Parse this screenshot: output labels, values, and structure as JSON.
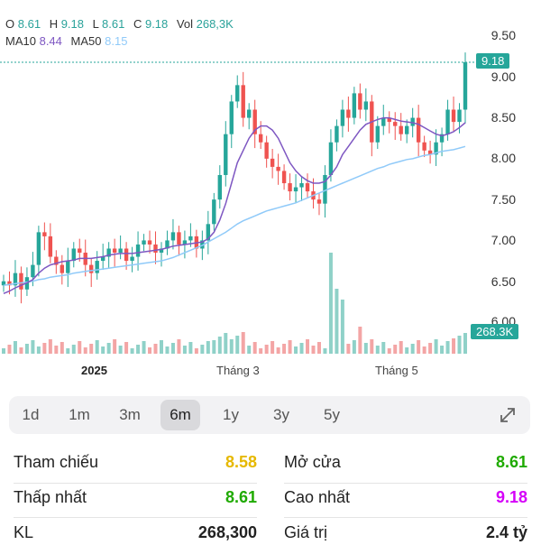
{
  "header": {
    "open_label": "O",
    "open_value": "8.61",
    "high_label": "H",
    "high_value": "9.18",
    "low_label": "L",
    "low_value": "8.61",
    "close_label": "C",
    "close_value": "9.18",
    "vol_label": "Vol",
    "vol_value": "268,3K",
    "ma10_label": "MA10",
    "ma10_value": "8.44",
    "ma50_label": "MA50",
    "ma50_value": "8.15"
  },
  "y_axis": {
    "labels": [
      "9.50",
      "9.00",
      "8.50",
      "8.00",
      "7.50",
      "7.00",
      "6.50",
      "6.00"
    ],
    "price_badge": "9.18",
    "volume_badge": "268.3K"
  },
  "x_axis": {
    "labels": [
      "2025",
      "Tháng 3",
      "Tháng 5"
    ]
  },
  "ranges": {
    "items": [
      "1d",
      "1m",
      "3m",
      "6m",
      "1y",
      "3y",
      "5y"
    ],
    "active": "6m"
  },
  "stats": {
    "ref_label": "Tham chiếu",
    "ref_value": "8.58",
    "open_label": "Mở cửa",
    "open_value": "8.61",
    "low_label": "Thấp nhất",
    "low_value": "8.61",
    "high_label": "Cao nhất",
    "high_value": "9.18",
    "vol_label": "KL",
    "vol_value": "268,300",
    "value_label": "Giá trị",
    "value_value": "2.4 tỷ"
  },
  "colors": {
    "up": "#26a69a",
    "down": "#ef5350",
    "ref": "#e6b800",
    "high": "#d500f9",
    "ma10": "#7e57c2",
    "ma50": "#90caf9",
    "volume_up": "#8fd1c8",
    "volume_down": "#f3a5a5"
  },
  "chart_data": {
    "type": "candlestick",
    "price_range": [
      6.0,
      9.5
    ],
    "closes": [
      6.5,
      6.45,
      6.6,
      6.4,
      6.55,
      6.7,
      7.1,
      7.05,
      6.8,
      6.7,
      6.6,
      6.75,
      6.9,
      6.85,
      6.7,
      6.6,
      6.75,
      6.8,
      6.9,
      6.85,
      6.9,
      6.75,
      6.8,
      6.95,
      7.0,
      6.95,
      6.85,
      6.9,
      7.0,
      7.1,
      6.95,
      7.0,
      7.05,
      6.9,
      7.0,
      7.2,
      7.5,
      7.8,
      8.3,
      8.7,
      8.9,
      8.5,
      8.6,
      8.3,
      8.2,
      8.0,
      7.9,
      7.85,
      7.7,
      7.6,
      7.65,
      7.7,
      7.6,
      7.5,
      7.45,
      7.8,
      8.2,
      8.4,
      8.6,
      8.5,
      8.8,
      8.6,
      8.7,
      8.2,
      8.4,
      8.5,
      8.45,
      8.4,
      8.3,
      8.4,
      8.5,
      8.2,
      8.1,
      8.05,
      8.2,
      8.3,
      8.6,
      8.45,
      8.6,
      9.18
    ],
    "ma10": [
      6.35,
      6.38,
      6.42,
      6.45,
      6.48,
      6.52,
      6.6,
      6.66,
      6.7,
      6.72,
      6.74,
      6.75,
      6.76,
      6.78,
      6.78,
      6.78,
      6.79,
      6.8,
      6.82,
      6.83,
      6.84,
      6.84,
      6.84,
      6.85,
      6.86,
      6.87,
      6.88,
      6.89,
      6.91,
      6.93,
      6.94,
      6.95,
      6.96,
      6.97,
      6.98,
      7.02,
      7.1,
      7.25,
      7.45,
      7.7,
      7.95,
      8.1,
      8.25,
      8.35,
      8.4,
      8.4,
      8.35,
      8.25,
      8.1,
      7.95,
      7.85,
      7.78,
      7.73,
      7.7,
      7.7,
      7.72,
      7.8,
      7.9,
      8.05,
      8.15,
      8.25,
      8.35,
      8.42,
      8.45,
      8.48,
      8.5,
      8.5,
      8.48,
      8.46,
      8.45,
      8.44,
      8.42,
      8.38,
      8.34,
      8.3,
      8.28,
      8.3,
      8.33,
      8.38,
      8.44
    ],
    "ma50": [
      6.45,
      6.46,
      6.47,
      6.48,
      6.49,
      6.5,
      6.52,
      6.53,
      6.55,
      6.56,
      6.57,
      6.58,
      6.6,
      6.61,
      6.62,
      6.63,
      6.64,
      6.65,
      6.66,
      6.67,
      6.68,
      6.69,
      6.7,
      6.71,
      6.72,
      6.73,
      6.74,
      6.75,
      6.77,
      6.79,
      6.82,
      6.85,
      6.88,
      6.91,
      6.94,
      6.98,
      7.02,
      7.06,
      7.1,
      7.15,
      7.2,
      7.24,
      7.27,
      7.3,
      7.33,
      7.36,
      7.38,
      7.4,
      7.42,
      7.44,
      7.46,
      7.49,
      7.52,
      7.55,
      7.58,
      7.61,
      7.64,
      7.67,
      7.7,
      7.73,
      7.76,
      7.79,
      7.82,
      7.85,
      7.88,
      7.9,
      7.93,
      7.95,
      7.97,
      7.99,
      8.0,
      8.02,
      8.04,
      8.05,
      8.07,
      8.09,
      8.1,
      8.11,
      8.13,
      8.15
    ]
  }
}
